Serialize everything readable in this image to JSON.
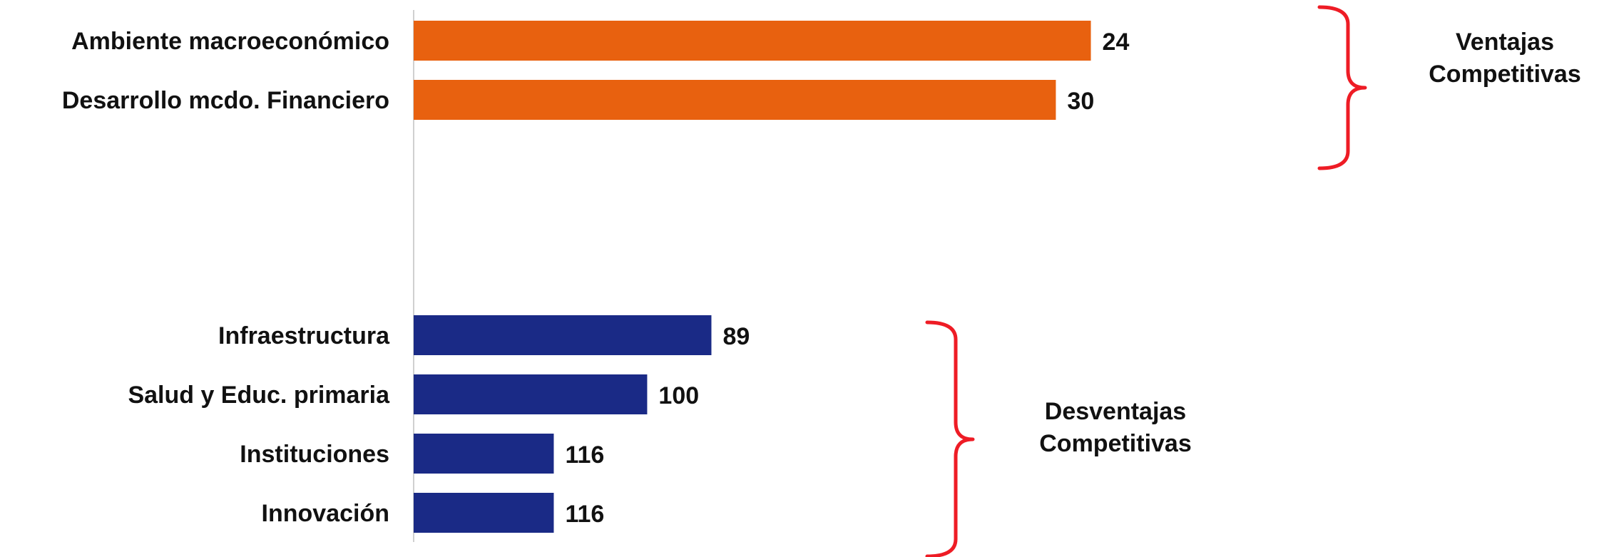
{
  "chart_data": {
    "type": "bar",
    "orientation": "horizontal",
    "categories": [
      "Ambiente macroeconómico",
      "Desarrollo mcdo. Financiero",
      "Infraestructura",
      "Salud y Educ. primaria",
      "Instituciones",
      "Innovación"
    ],
    "values": [
      24,
      30,
      89,
      100,
      116,
      116
    ],
    "bar_colors": [
      "#E8610F",
      "#E8610F",
      "#1A2A86",
      "#1A2A86",
      "#1A2A86",
      "#1A2A86"
    ],
    "value_axis_reversed": true,
    "xlim": [
      0,
      140
    ],
    "grid": false,
    "legend": "none",
    "brackets": [
      {
        "label_lines": [
          "Ventajas",
          "Competitivas"
        ],
        "categories": [
          "Ambiente macroeconómico",
          "Desarrollo mcdo. Financiero"
        ]
      },
      {
        "label_lines": [
          "Desventajas",
          "Competitivas"
        ],
        "categories": [
          "Infraestructura",
          "Salud y Educ. primaria",
          "Instituciones",
          "Innovación"
        ]
      }
    ],
    "bracket_color": "#EE1C25",
    "title": "",
    "xlabel": "",
    "ylabel": ""
  }
}
